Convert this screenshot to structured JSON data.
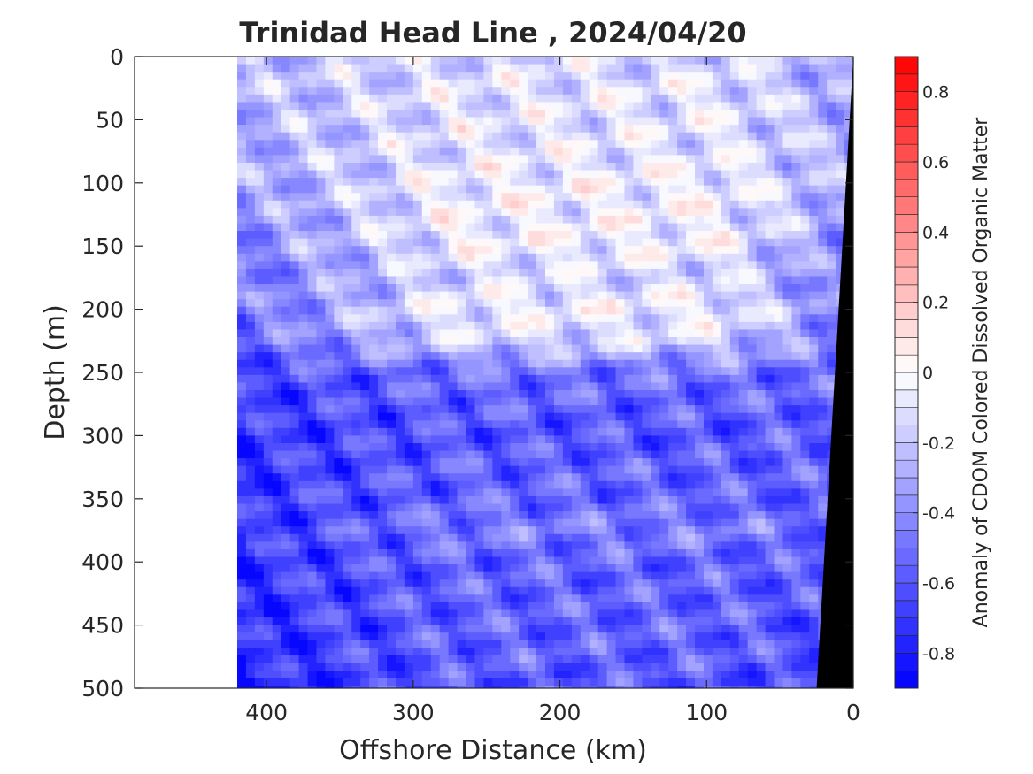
{
  "chart_data": {
    "type": "heatmap",
    "title": "Trinidad Head Line , 2024/04/20",
    "xlabel": "Offshore Distance (km)",
    "ylabel": "Depth (m)",
    "colorbar_label": "Anomaly of CDOM Colored Dissolved Organic Matter",
    "xlim": [
      490,
      0
    ],
    "ylim": [
      0,
      500
    ],
    "y_reversed": true,
    "x_reversed": true,
    "x_ticks": [
      "400",
      "300",
      "200",
      "100",
      "0"
    ],
    "y_ticks": [
      "0",
      "50",
      "100",
      "150",
      "200",
      "250",
      "300",
      "350",
      "400",
      "450",
      "500"
    ],
    "colorbar_ticks": [
      "0.8",
      "0.6",
      "0.4",
      "0.2",
      "0",
      "-0.2",
      "-0.4",
      "-0.6",
      "-0.8"
    ],
    "colorbar_range": [
      -0.9,
      0.9
    ],
    "colorbar_levels": 36,
    "colormap": {
      "low": "#0000ff",
      "mid": "#ffffff",
      "high": "#ff0000"
    },
    "data_extent_x": [
      420,
      0
    ],
    "depth_levels": [
      0,
      25,
      50,
      75,
      100,
      125,
      150,
      175,
      200,
      225,
      250,
      275,
      300,
      325,
      350,
      375,
      400,
      425,
      450,
      475,
      500
    ],
    "anomaly_profile_offshore": [
      -0.25,
      -0.25,
      -0.3,
      -0.3,
      -0.35,
      -0.4,
      -0.45,
      -0.5,
      -0.5,
      -0.55,
      -0.65,
      -0.7,
      -0.7,
      -0.72,
      -0.7,
      -0.72,
      -0.72,
      -0.72,
      -0.75,
      -0.75,
      -0.8
    ],
    "anomaly_profile_central": [
      -0.15,
      -0.1,
      -0.1,
      -0.1,
      -0.05,
      -0.05,
      -0.05,
      -0.15,
      -0.05,
      -0.15,
      -0.5,
      -0.55,
      -0.6,
      -0.55,
      -0.55,
      -0.45,
      -0.55,
      -0.55,
      -0.55,
      -0.55,
      -0.6
    ],
    "anomaly_profile_nearshore": [
      -0.35,
      -0.3,
      -0.3,
      -0.3,
      -0.3,
      -0.35,
      -0.45,
      -0.5,
      -0.45,
      -0.5,
      -0.55,
      -0.55,
      -0.55,
      -0.55,
      -0.6,
      -0.55,
      -0.6,
      -0.6,
      -0.65,
      -0.65,
      -0.7
    ],
    "seafloor_color": "#000000",
    "seafloor_boundary": [
      {
        "x": 0,
        "depth": 0
      },
      {
        "x": 25,
        "depth": 500
      }
    ]
  }
}
